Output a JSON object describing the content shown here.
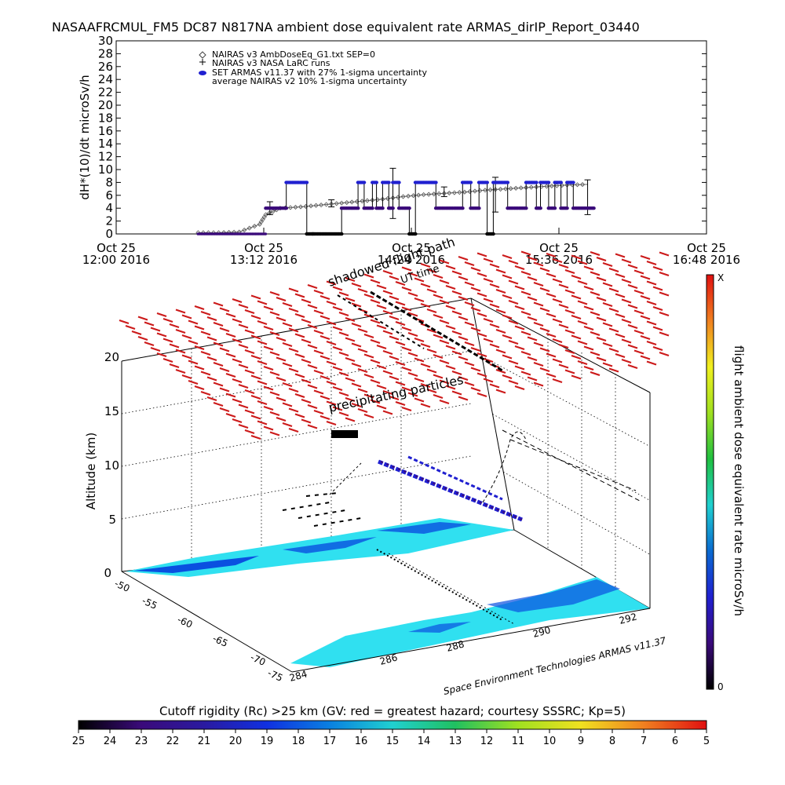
{
  "title": "NASAAFRCMUL_FM5 DC87 N817NA ambient dose equivalent rate ARMAS_dirIP_Report_03440",
  "colors": {
    "armas": "#2020d0",
    "armas_low": "#3a0a7a",
    "nairas": "#666666",
    "shadow": "#cc1a1a",
    "colorbar_right": [
      "#000000",
      "#3a0a7a",
      "#2020d0",
      "#0a6ad0",
      "#20d0d0",
      "#20c040",
      "#a0e020",
      "#f0f020",
      "#f08020",
      "#e01010"
    ],
    "colorbar_bottom": [
      "#000000",
      "#3a0a7a",
      "#2a1aa0",
      "#1030e0",
      "#0a80e0",
      "#20d0d0",
      "#20c060",
      "#a0e020",
      "#f0e020",
      "#f08020",
      "#e01010"
    ],
    "ground": "#30e0f0",
    "ground_dark": "#0a50e0"
  },
  "chart_data": [
    {
      "type": "scatter",
      "ylabel": "dH*(10)/dt microSv/h",
      "ylim": [
        0,
        30
      ],
      "yticks": [
        "0",
        "2",
        "4",
        "6",
        "8",
        "10",
        "12",
        "14",
        "16",
        "18",
        "20",
        "22",
        "24",
        "26",
        "28",
        "30"
      ],
      "xlim_minutes": [
        720,
        1008
      ],
      "xticks": [
        {
          "minutes": 720,
          "line1": "Oct 25",
          "line2": "12:00 2016"
        },
        {
          "minutes": 792,
          "line1": "Oct 25",
          "line2": "13:12 2016"
        },
        {
          "minutes": 864,
          "line1": "Oct 25",
          "line2": "14:24 2016"
        },
        {
          "minutes": 936,
          "line1": "Oct 25",
          "line2": "15:36 2016"
        },
        {
          "minutes": 1008,
          "line1": "Oct 25",
          "line2": "16:48 2016"
        }
      ],
      "legend": [
        {
          "symbol": "diamond",
          "label": "NAIRAS v3 AmbDoseEq_G1.txt SEP=0"
        },
        {
          "symbol": "plus",
          "label": "NAIRAS v3 NASA LaRC runs"
        },
        {
          "symbol": "ellipse",
          "label": "SET ARMAS v11.37 with 27% 1-sigma uncertainty"
        },
        {
          "symbol": "none",
          "label": "average NAIRAS v2 10% 1-sigma uncertainty"
        }
      ],
      "nairas_curve": {
        "time_minutes": [
          760,
          770,
          780,
          790,
          793,
          800,
          810,
          820,
          830,
          840,
          850,
          860,
          870,
          880,
          890,
          900,
          910,
          920,
          930,
          940,
          950
        ],
        "values": [
          0.2,
          0.2,
          0.3,
          1.5,
          3.0,
          4.0,
          4.2,
          4.5,
          4.8,
          5.1,
          5.4,
          5.8,
          6.1,
          6.3,
          6.5,
          6.8,
          7.0,
          7.2,
          7.4,
          7.6,
          7.7
        ]
      },
      "nairas_errorbars": [
        {
          "t": 795,
          "v": 4.0,
          "lo": 3.0,
          "hi": 5.0
        },
        {
          "t": 825,
          "v": 4.8,
          "lo": 4.2,
          "hi": 5.3
        },
        {
          "t": 855,
          "v": 6.2,
          "lo": 2.4,
          "hi": 10.2
        },
        {
          "t": 880,
          "v": 6.6,
          "lo": 5.8,
          "hi": 7.3
        },
        {
          "t": 905,
          "v": 6.9,
          "lo": 3.4,
          "hi": 8.8
        },
        {
          "t": 950,
          "v": 7.4,
          "lo": 3.0,
          "hi": 8.4
        }
      ],
      "armas_segments": [
        {
          "t0": 793,
          "t1": 803,
          "v": 4.0
        },
        {
          "t0": 803,
          "t1": 813,
          "v": 8.0
        },
        {
          "t0": 813,
          "t1": 816,
          "v": 0.0
        },
        {
          "t0": 816,
          "t1": 830,
          "v": 0.0
        },
        {
          "t0": 830,
          "t1": 838,
          "v": 4.0
        },
        {
          "t0": 838,
          "t1": 841,
          "v": 8.0
        },
        {
          "t0": 841,
          "t1": 845,
          "v": 4.0
        },
        {
          "t0": 845,
          "t1": 847,
          "v": 8.0
        },
        {
          "t0": 847,
          "t1": 850,
          "v": 4.0
        },
        {
          "t0": 850,
          "t1": 853,
          "v": 8.0
        },
        {
          "t0": 853,
          "t1": 855,
          "v": 4.0
        },
        {
          "t0": 855,
          "t1": 858,
          "v": 8.0
        },
        {
          "t0": 858,
          "t1": 863,
          "v": 4.0
        },
        {
          "t0": 863,
          "t1": 866,
          "v": 0.0
        },
        {
          "t0": 866,
          "t1": 876,
          "v": 8.0
        },
        {
          "t0": 876,
          "t1": 889,
          "v": 4.0
        },
        {
          "t0": 889,
          "t1": 893,
          "v": 8.0
        },
        {
          "t0": 893,
          "t1": 897,
          "v": 4.0
        },
        {
          "t0": 897,
          "t1": 901,
          "v": 8.0
        },
        {
          "t0": 901,
          "t1": 904,
          "v": 0.0
        },
        {
          "t0": 904,
          "t1": 911,
          "v": 8.0
        },
        {
          "t0": 911,
          "t1": 920,
          "v": 4.0
        },
        {
          "t0": 920,
          "t1": 925,
          "v": 8.0
        },
        {
          "t0": 925,
          "t1": 927,
          "v": 4.0
        },
        {
          "t0": 927,
          "t1": 931,
          "v": 8.0
        },
        {
          "t0": 931,
          "t1": 934,
          "v": 4.0
        },
        {
          "t0": 934,
          "t1": 937,
          "v": 8.0
        },
        {
          "t0": 937,
          "t1": 940,
          "v": 4.0
        },
        {
          "t0": 940,
          "t1": 943,
          "v": 8.0
        },
        {
          "t0": 943,
          "t1": 953,
          "v": 4.0
        }
      ]
    },
    {
      "type": "area",
      "zlabel": "Altitude (km)",
      "zticks": [
        "0",
        "5",
        "10",
        "15",
        "20"
      ],
      "xticks": [
        "284",
        "286",
        "288",
        "290",
        "292"
      ],
      "yticks": [
        "-75",
        "-70",
        "-65",
        "-60",
        "-55",
        "-50"
      ],
      "annotations": [
        "shadowed flight path",
        "UT time",
        "precipitating particles"
      ],
      "credit": "Space Environment Technologies ARMAS v11.37"
    },
    {
      "type": "heatmap",
      "colorbar_right": {
        "label": "flight ambient dose equivalent rate microSv/h",
        "top": "X",
        "bottom": "0"
      },
      "colorbar_bottom": {
        "label": "Cutoff rigidity (Rc) >25 km (GV: red = greatest hazard; courtesy SSSRC; Kp=5)",
        "ticks": [
          "25",
          "24",
          "23",
          "22",
          "21",
          "20",
          "19",
          "18",
          "17",
          "16",
          "15",
          "14",
          "13",
          "12",
          "11",
          "10",
          "9",
          "8",
          "7",
          "6",
          "5"
        ]
      }
    }
  ]
}
